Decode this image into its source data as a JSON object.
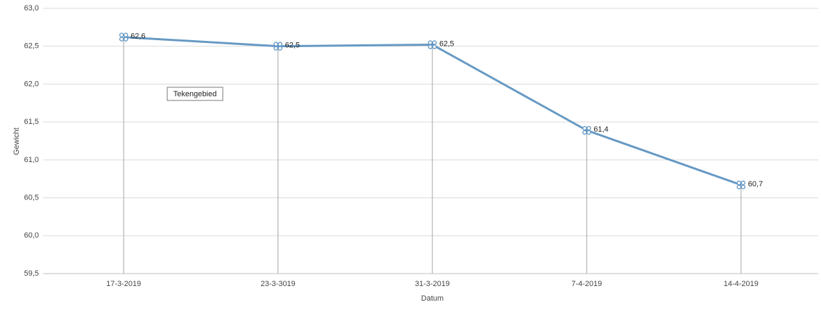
{
  "chart_data": {
    "type": "line",
    "x_label": "Datum",
    "y_label": "Gewicht",
    "categories": [
      "17-3-2019",
      "23-3-3019",
      "31-3-2019",
      "7-4-2019",
      "14-4-2019"
    ],
    "series": [
      {
        "name": "Gewicht",
        "color": "#6699c4",
        "values": [
          62.62,
          62.5,
          62.52,
          61.39,
          60.67
        ],
        "value_labels": [
          "62,6",
          "62,5",
          "62,5",
          "61,4",
          "60,7"
        ]
      }
    ],
    "ylim": [
      59.5,
      63.0
    ],
    "yticks": [
      {
        "value": 59.5,
        "label": "59,5"
      },
      {
        "value": 60.0,
        "label": "60,0"
      },
      {
        "value": 60.5,
        "label": "60,5"
      },
      {
        "value": 61.0,
        "label": "61,0"
      },
      {
        "value": 61.5,
        "label": "61,5"
      },
      {
        "value": 62.0,
        "label": "62,0"
      },
      {
        "value": 62.5,
        "label": "62,5"
      },
      {
        "value": 63.0,
        "label": "63,0"
      }
    ],
    "grid": true,
    "drop_lines": true
  },
  "tooltip": "Tekengebied"
}
